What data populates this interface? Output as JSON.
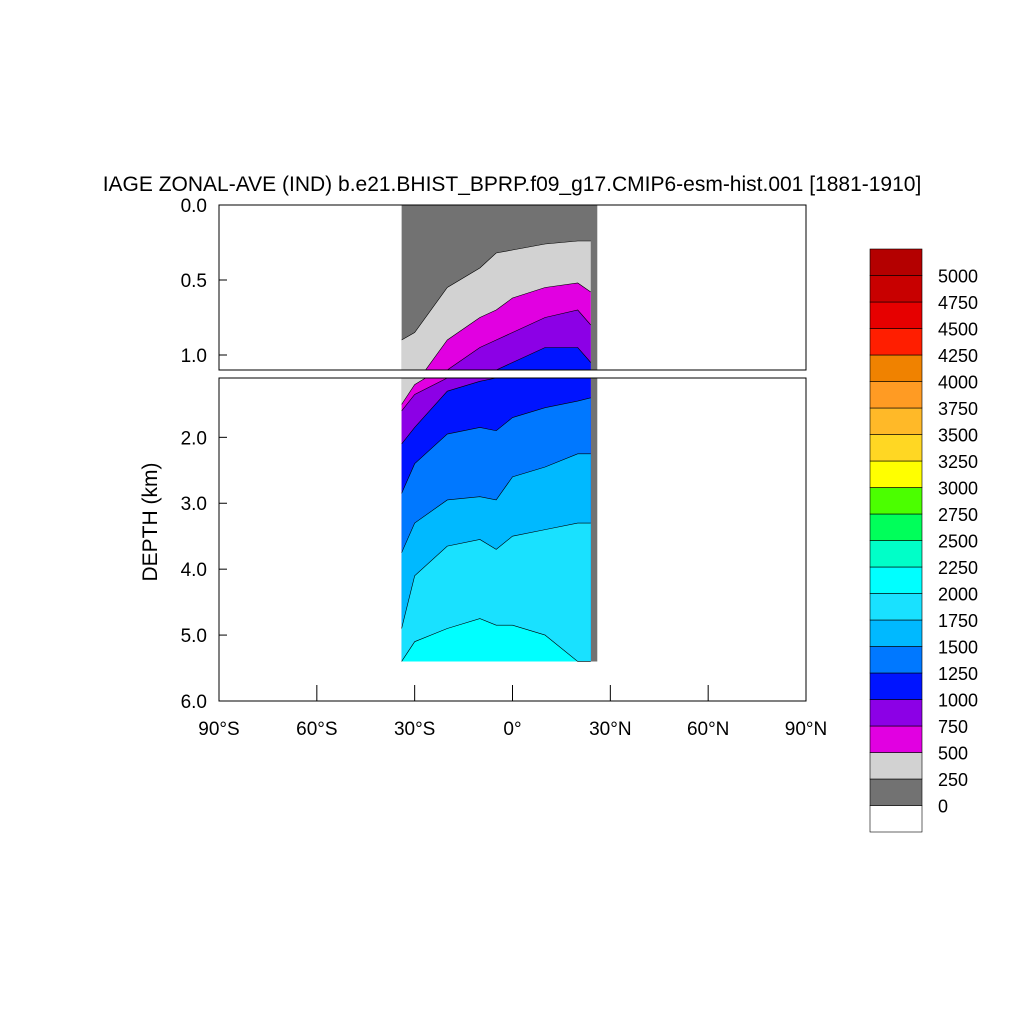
{
  "chart_data": {
    "type": "heatmap",
    "subtype": "filled-contour-depth-latitude-section",
    "title": "IAGE ZONAL-AVE (IND) b.e21.BHIST_BPRP.f09_g17.CMIP6-esm-hist.001 [1881-1910]",
    "ylabel": "DEPTH (km)",
    "x_range_deg": [
      -90,
      90
    ],
    "x_ticks": [
      "90°S",
      "60°S",
      "30°S",
      "0°",
      "30°N",
      "60°N",
      "90°N"
    ],
    "upper_panel": {
      "ylim_km": [
        0.0,
        1.1
      ],
      "y_ticks": [
        "0.0",
        "0.5",
        "1.0"
      ]
    },
    "lower_panel": {
      "ylim_km": [
        1.1,
        6.0
      ],
      "y_ticks": [
        "2.0",
        "3.0",
        "4.0",
        "5.0",
        "6.0"
      ]
    },
    "colorbar": {
      "levels": [
        "0",
        "250",
        "500",
        "750",
        "1000",
        "1250",
        "1500",
        "1750",
        "2000",
        "2250",
        "2500",
        "2750",
        "3000",
        "3250",
        "3500",
        "3750",
        "4000",
        "4250",
        "4500",
        "4750",
        "5000"
      ],
      "colors": [
        "#ffffff",
        "#727272",
        "#d2d2d2",
        "#e100e1",
        "#8c00e6",
        "#0014ff",
        "#0078ff",
        "#00b9ff",
        "#19e1ff",
        "#00ffff",
        "#00ffc8",
        "#00ff5a",
        "#4bff00",
        "#ffff00",
        "#ffd723",
        "#ffb928",
        "#ff9b23",
        "#f08200",
        "#ff1e00",
        "#e60000",
        "#c80000",
        "#b40000"
      ]
    },
    "data_extent": {
      "lat_min": -34,
      "lat_max": 26,
      "max_depth_km": 5.4
    },
    "contour_depths_km": {
      "lat": [
        -34,
        -30,
        -20,
        -10,
        -5,
        0,
        10,
        20,
        24
      ],
      "age_250": [
        0.9,
        0.85,
        0.55,
        0.42,
        0.32,
        0.3,
        0.26,
        0.24,
        0.24
      ],
      "age_500": [
        1.5,
        1.2,
        0.9,
        0.75,
        0.7,
        0.62,
        0.55,
        0.52,
        0.58
      ],
      "age_750": [
        1.6,
        1.35,
        1.1,
        0.95,
        0.9,
        0.85,
        0.75,
        0.7,
        0.8
      ],
      "age_1000": [
        2.1,
        1.85,
        1.3,
        1.15,
        1.1,
        1.05,
        0.95,
        0.95,
        1.05
      ],
      "age_1250": [
        2.85,
        2.4,
        1.95,
        1.85,
        1.9,
        1.7,
        1.55,
        1.45,
        1.4
      ],
      "age_1500": [
        3.75,
        3.3,
        2.95,
        2.9,
        2.95,
        2.6,
        2.45,
        2.25,
        2.25
      ],
      "age_1750": [
        4.9,
        4.1,
        3.65,
        3.55,
        3.7,
        3.5,
        3.4,
        3.3,
        3.3
      ],
      "age_2000": [
        5.4,
        5.1,
        4.9,
        4.75,
        4.85,
        4.85,
        5.0,
        5.4,
        5.4
      ]
    }
  }
}
